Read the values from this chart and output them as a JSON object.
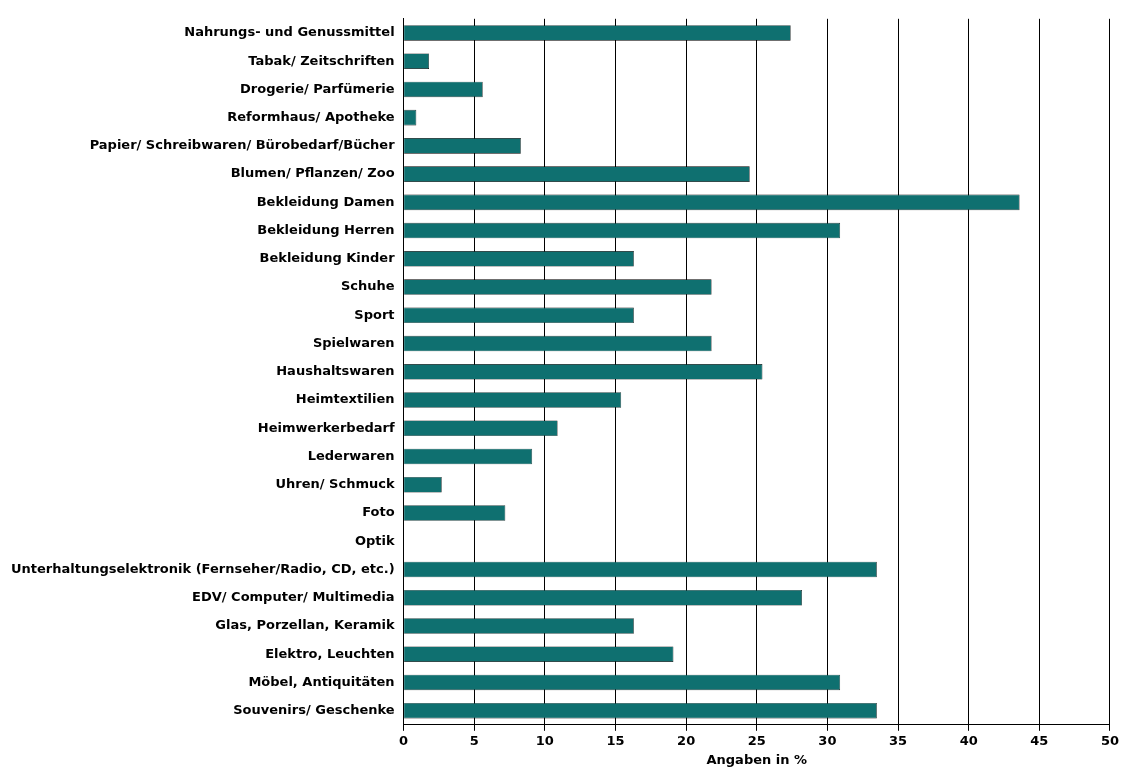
{
  "chart_data": {
    "type": "bar",
    "orientation": "horizontal",
    "xlabel": "Angaben in %",
    "categories": [
      "Nahrungs- und Genussmittel",
      "Tabak/ Zeitschriften",
      "Drogerie/ Parfümerie",
      "Reformhaus/ Apotheke",
      "Papier/ Schreibwaren/ Bürobedarf/Bücher",
      "Blumen/ Pflanzen/ Zoo",
      "Bekleidung Damen",
      "Bekleidung Herren",
      "Bekleidung Kinder",
      "Schuhe",
      "Sport",
      "Spielwaren",
      "Haushaltswaren",
      "Heimtextilien",
      "Heimwerkerbedarf",
      "Lederwaren",
      "Uhren/ Schmuck",
      "Foto",
      "Optik",
      "Unterhaltungselektronik (Fernseher/Radio, CD, etc.)",
      "EDV/ Computer/ Multimedia",
      "Glas, Porzellan, Keramik",
      "Elektro, Leuchten",
      "Möbel, Antiquitäten",
      "Souvenirs/ Geschenke"
    ],
    "values": [
      27.4,
      1.8,
      5.6,
      0.9,
      8.3,
      24.5,
      43.6,
      30.9,
      16.3,
      21.8,
      16.3,
      21.8,
      25.4,
      15.4,
      10.9,
      9.1,
      2.7,
      7.2,
      0,
      33.5,
      28.2,
      16.3,
      19.1,
      30.9,
      33.5
    ],
    "color": "#0f7070",
    "xlim": [
      0,
      50
    ],
    "xticks": [
      0,
      5,
      10,
      15,
      20,
      25,
      30,
      35,
      40,
      45,
      50
    ],
    "grid": "x",
    "legend": false
  }
}
